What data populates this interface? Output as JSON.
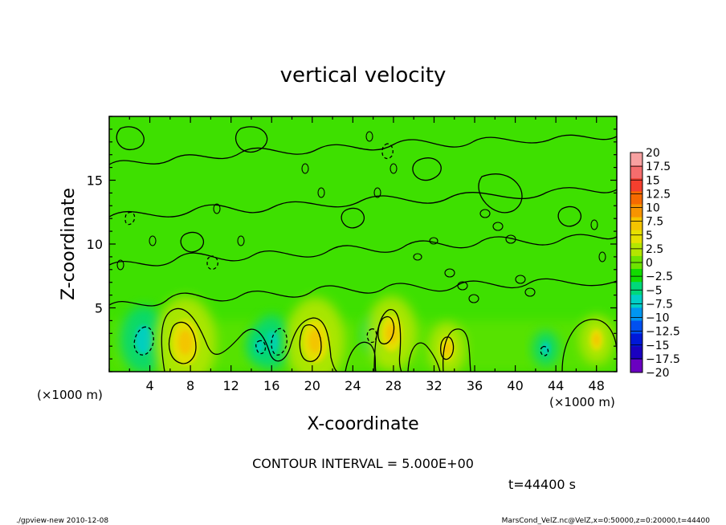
{
  "chart_data": {
    "type": "heatmap",
    "title": "vertical velocity",
    "xlabel": "X-coordinate",
    "ylabel": "Z-coordinate",
    "x_unit_left": "(×1000 m)",
    "x_unit_right": "(×1000 m)",
    "xlim": [
      0,
      50
    ],
    "ylim": [
      0,
      20
    ],
    "x_ticks": [
      4,
      8,
      12,
      16,
      20,
      24,
      28,
      32,
      36,
      40,
      44,
      48
    ],
    "y_ticks": [
      5,
      10,
      15
    ],
    "contour_interval_text": "CONTOUR INTERVAL = 5.000E+00",
    "time_text": "t=44400 s",
    "colorbar": {
      "labels": [
        "20",
        "17.5",
        "15",
        "12.5",
        "10",
        "7.5",
        "5",
        "2.5",
        "0",
        "−2.5",
        "−5",
        "−7.5",
        "−10",
        "−12.5",
        "−15",
        "−17.5",
        "−20"
      ],
      "colors": [
        "#f7a1a1",
        "#f56d6d",
        "#f43f2e",
        "#f66a00",
        "#f79400",
        "#f4c400",
        "#e6e000",
        "#b4e600",
        "#6ee400",
        "#12dc00",
        "#00d87a",
        "#00cfc8",
        "#0096f0",
        "#0050f0",
        "#0018d8",
        "#1a00c0",
        "#6a00c0"
      ]
    },
    "warm_cells": [
      {
        "x": 7.5,
        "z": 2.3,
        "w": 0.95
      },
      {
        "x": 20.3,
        "z": 2.4,
        "w": 0.9
      },
      {
        "x": 27.8,
        "z": 3.0,
        "w": 0.75
      },
      {
        "x": 33.3,
        "z": 1.8,
        "w": 0.5
      },
      {
        "x": 48.0,
        "z": 2.5,
        "w": 0.45
      }
    ],
    "cool_cells": [
      {
        "x": 3.4,
        "z": 2.5,
        "w": 0.9
      },
      {
        "x": 16.0,
        "z": 2.3,
        "w": 0.7
      },
      {
        "x": 14.8,
        "z": 2.0,
        "w": 0.4
      },
      {
        "x": 26.3,
        "z": 2.9,
        "w": 0.45
      },
      {
        "x": 43.0,
        "z": 1.8,
        "w": 0.4
      }
    ]
  },
  "footer": {
    "left": "./gpview-new  2010-12-08",
    "right": "MarsCond_VelZ.nc@VelZ,x=0:50000,z=0:20000,t=44400"
  }
}
